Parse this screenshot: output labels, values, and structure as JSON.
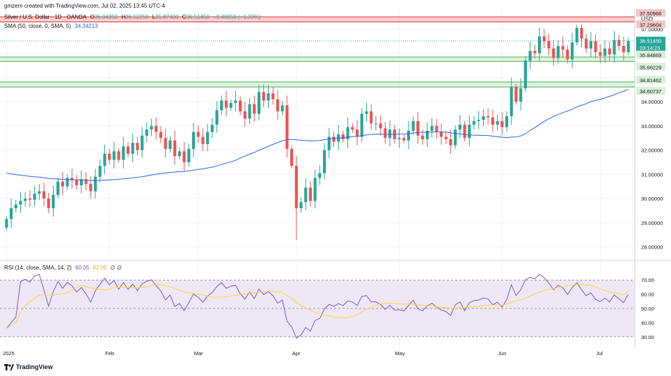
{
  "header": {
    "credit": "gmzern created with TradingView.com, Jul 02, 2025 13:45 UTC-4",
    "symbol": "Silver / U.S. Dollar · 1D · OANDA",
    "o_label": "O",
    "o_val": "36.04350",
    "h_label": "H",
    "h_val": "36.52250",
    "l_label": "L",
    "l_val": "35.87400",
    "c_label": "C",
    "c_val": "36.51450",
    "change": "+0.48050 (+1.33%)",
    "sma_label": "SMA (50, close, 0, SMA, 5)",
    "sma_val": "34.34213",
    "rsi_label": "RSI (14, close, SMA, 14, 2)",
    "rsi_val": "60.05",
    "rsi_sma_val": "62.05",
    "rsi_extra": "∅ ∅"
  },
  "colors": {
    "up": "#26a69a",
    "down": "#ef5350",
    "sma": "#2962ff",
    "rsi": "#7e57c2",
    "rsi_ma": "#fdd835",
    "rsi_band": "#ede7f6",
    "res_zone": "#f7c6c6",
    "sup_zone": "#d8f0d8",
    "sup_line": "#4caf50",
    "res_line": "#e53935"
  },
  "footer": {
    "logo_text": "TradingView",
    "logo_icon": "tradingview-logo-icon"
  },
  "chart_data": [
    {
      "type": "candlestick",
      "currency": "USD",
      "y_ticks": [
        "37.00000",
        "36.00000",
        "35.00000",
        "34.00000",
        "33.00000",
        "32.00000",
        "31.00000",
        "30.00000",
        "29.00000",
        "28.00000"
      ],
      "ylim": [
        27.5,
        37.8
      ],
      "x_ticks": [
        "2025",
        "Feb",
        "Mar",
        "Apr",
        "May",
        "Jun",
        "Jul"
      ],
      "x_tick_index": [
        0,
        22,
        41,
        62,
        84,
        106,
        127
      ],
      "price_labels": [
        {
          "text": "37.50966",
          "value": 37.50966,
          "kind": "resistance"
        },
        {
          "text": "37.29604",
          "value": 37.29604,
          "kind": "resistance"
        },
        {
          "text": "36.51450",
          "value": 36.5145,
          "kind": "last"
        },
        {
          "text": "03:14:23",
          "value": 36.5145,
          "kind": "countdown"
        },
        {
          "text": "35.84869",
          "value": 35.84869,
          "kind": "support"
        },
        {
          "text": "35.66229",
          "value": 35.66229,
          "kind": "support"
        },
        {
          "text": "34.81462",
          "value": 34.81462,
          "kind": "support"
        },
        {
          "text": "34.60737",
          "value": 34.60737,
          "kind": "support"
        }
      ],
      "zones": [
        {
          "from": 37.29604,
          "to": 37.50966,
          "kind": "resistance"
        },
        {
          "from": 35.66229,
          "to": 35.84869,
          "kind": "support"
        },
        {
          "from": 34.60737,
          "to": 34.81462,
          "kind": "support"
        }
      ],
      "closes": [
        29.15,
        29.6,
        29.75,
        29.9,
        30.0,
        29.95,
        30.2,
        30.3,
        30.0,
        29.6,
        30.15,
        30.7,
        30.5,
        30.85,
        30.75,
        30.55,
        30.8,
        30.6,
        30.3,
        30.9,
        31.35,
        31.85,
        31.6,
        31.95,
        31.6,
        32.15,
        31.85,
        32.3,
        32.0,
        32.6,
        32.85,
        33.0,
        32.75,
        32.5,
        32.05,
        32.4,
        31.75,
        31.95,
        31.5,
        32.05,
        32.75,
        32.55,
        32.25,
        32.75,
        33.05,
        33.65,
        34.05,
        33.75,
        33.95,
        34.05,
        33.6,
        33.3,
        33.9,
        33.5,
        34.4,
        34.05,
        34.35,
        34.1,
        33.6,
        33.85,
        32.05,
        31.35,
        29.6,
        29.85,
        30.45,
        29.9,
        30.85,
        31.05,
        32.0,
        32.55,
        32.35,
        32.65,
        32.45,
        32.95,
        32.85,
        32.55,
        33.5,
        33.6,
        33.1,
        33.1,
        32.9,
        32.5,
        32.85,
        32.45,
        32.5,
        32.4,
        32.8,
        33.2,
        32.6,
        32.45,
        32.8,
        33.0,
        32.75,
        32.55,
        32.45,
        32.2,
        32.85,
        33.05,
        32.5,
        33.05,
        33.2,
        33.25,
        33.4,
        33.35,
        33.05,
        33.2,
        32.95,
        33.4,
        34.6,
        34.0,
        34.55,
        35.7,
        36.1,
        36.0,
        36.7,
        36.5,
        36.2,
        35.8,
        36.3,
        36.15,
        35.75,
        36.45,
        37.05,
        36.6,
        36.2,
        36.5,
        36.05,
        35.9,
        36.2,
        35.95,
        36.55,
        36.3,
        36.05,
        36.51
      ],
      "sma50_start": 31.05,
      "sma50_end": 34.34213,
      "rsi": {
        "ylim": [
          25,
          75
        ],
        "y_ticks": [
          "70.00",
          "60.00",
          "50.00",
          "40.00",
          "30.00"
        ],
        "upper": 70,
        "middle": 50,
        "lower": 30,
        "last": 60.05,
        "last_ma": 62.05
      }
    }
  ]
}
